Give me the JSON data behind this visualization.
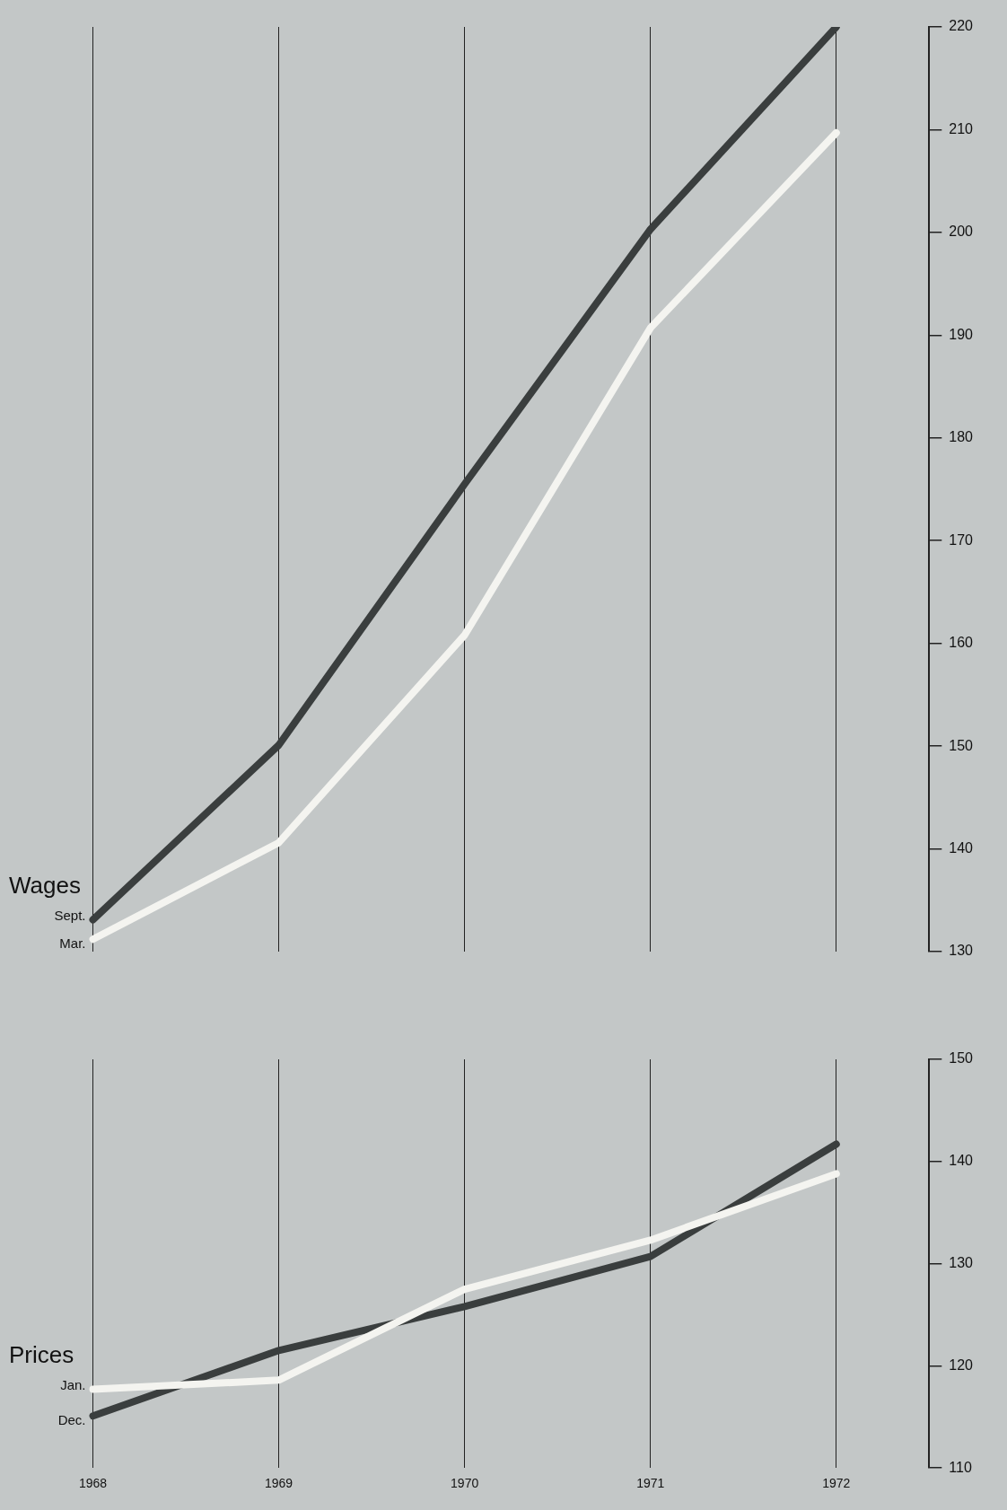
{
  "chart_data": [
    {
      "type": "line",
      "title": "Wages",
      "categories": [
        "1968",
        "1969",
        "1970",
        "1971",
        "1972"
      ],
      "series": [
        {
          "name": "Sept.",
          "color": "#3a3e3e",
          "values": [
            133.1,
            150.1,
            175.5,
            200.3,
            220
          ]
        },
        {
          "name": "Mar.",
          "color": "#f4f4f0",
          "values": [
            131.2,
            140.6,
            160.8,
            190.7,
            209.7
          ]
        }
      ],
      "ylim": [
        130,
        220
      ],
      "yticks": [
        130,
        140,
        150,
        160,
        170,
        180,
        190,
        200,
        210,
        220
      ],
      "grid": "x",
      "tick_labels": "y"
    },
    {
      "type": "line",
      "title": "Prices",
      "categories": [
        "1968",
        "1969",
        "1970",
        "1971",
        "1972"
      ],
      "series": [
        {
          "name": "Jan.",
          "color": "#f4f4f0",
          "values": [
            117.7,
            118.6,
            127.5,
            132.3,
            138.8
          ]
        },
        {
          "name": "Dec.",
          "color": "#3a3e3e",
          "values": [
            115.1,
            121.5,
            125.8,
            130.7,
            141.7
          ]
        }
      ],
      "ylim": [
        110,
        150
      ],
      "yticks": [
        110,
        120,
        130,
        140,
        150
      ],
      "grid": "x"
    }
  ]
}
